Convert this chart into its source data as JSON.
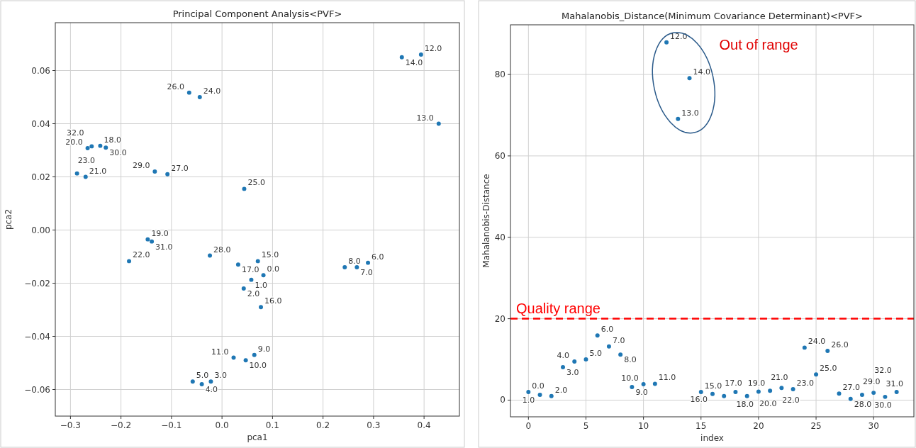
{
  "chart_data": [
    {
      "type": "scatter",
      "title": "Principal Component Analysis<PVF>",
      "xlabel": "pca1",
      "ylabel": "pca2",
      "grid": true,
      "marker": "circle",
      "xlim": [
        -0.33,
        0.47
      ],
      "ylim": [
        -0.07,
        0.078
      ],
      "xticks": [
        {
          "value": -0.3,
          "label": "−0.3"
        },
        {
          "value": -0.2,
          "label": "−0.2"
        },
        {
          "value": -0.1,
          "label": "−0.1"
        },
        {
          "value": 0,
          "label": "0.0"
        },
        0.1,
        0.2,
        0.3,
        0.4
      ],
      "yticks": [
        {
          "value": -0.06,
          "label": "−0.06"
        },
        {
          "value": -0.04,
          "label": "−0.04"
        },
        {
          "value": -0.02,
          "label": "−0.02"
        },
        {
          "value": 0,
          "label": "0.00"
        },
        {
          "value": 0.02,
          "label": "0.02"
        },
        {
          "value": 0.04,
          "label": "0.04"
        },
        {
          "value": 0.06,
          "label": "0.06"
        }
      ],
      "series": [
        {
          "color": "#1f77b4",
          "x": [
            0.082,
            0.058,
            0.043,
            -0.022,
            -0.04,
            -0.058,
            0.289,
            0.267,
            0.243,
            0.064,
            0.047,
            0.023,
            0.394,
            0.429,
            0.356,
            0.071,
            0.077,
            0.032,
            -0.241,
            -0.147,
            -0.266,
            -0.27,
            -0.184,
            -0.287,
            -0.044,
            0.044,
            -0.065,
            -0.108,
            -0.024,
            -0.133,
            -0.23,
            -0.139,
            -0.258
          ],
          "values": [
            -0.017,
            -0.0187,
            -0.022,
            -0.057,
            -0.058,
            -0.057,
            -0.0123,
            -0.014,
            -0.014,
            -0.047,
            -0.049,
            -0.048,
            0.066,
            0.04,
            0.065,
            -0.0117,
            -0.029,
            -0.013,
            0.0317,
            -0.0035,
            0.0308,
            0.02,
            -0.0117,
            0.0213,
            0.05,
            0.0155,
            0.0517,
            0.021,
            -0.0096,
            0.022,
            0.031,
            -0.0043,
            0.0315
          ]
        }
      ],
      "annotations": [
        {
          "text": "0.0",
          "x": 0.082,
          "y": -0.017
        },
        {
          "text": "1.0",
          "x": 0.058,
          "y": -0.0187
        },
        {
          "text": "2.0",
          "x": 0.043,
          "y": -0.022
        },
        {
          "text": "3.0",
          "x": -0.022,
          "y": -0.057
        },
        {
          "text": "4.0",
          "x": -0.04,
          "y": -0.058
        },
        {
          "text": "5.0",
          "x": -0.058,
          "y": -0.057
        },
        {
          "text": "6.0",
          "x": 0.289,
          "y": -0.0123
        },
        {
          "text": "7.0",
          "x": 0.267,
          "y": -0.014
        },
        {
          "text": "8.0",
          "x": 0.243,
          "y": -0.014
        },
        {
          "text": "9.0",
          "x": 0.064,
          "y": -0.047
        },
        {
          "text": "10.0",
          "x": 0.047,
          "y": -0.049
        },
        {
          "text": "11.0",
          "x": 0.023,
          "y": -0.048
        },
        {
          "text": "12.0",
          "x": 0.394,
          "y": 0.066
        },
        {
          "text": "13.0",
          "x": 0.429,
          "y": 0.04
        },
        {
          "text": "14.0",
          "x": 0.356,
          "y": 0.065
        },
        {
          "text": "15.0",
          "x": 0.071,
          "y": -0.0117
        },
        {
          "text": "16.0",
          "x": 0.077,
          "y": -0.029
        },
        {
          "text": "17.0",
          "x": 0.032,
          "y": -0.013
        },
        {
          "text": "18.0",
          "x": -0.241,
          "y": 0.0317
        },
        {
          "text": "19.0",
          "x": -0.147,
          "y": -0.0035
        },
        {
          "text": "20.0",
          "x": -0.266,
          "y": 0.0308
        },
        {
          "text": "21.0",
          "x": -0.27,
          "y": 0.02
        },
        {
          "text": "22.0",
          "x": -0.184,
          "y": -0.0117
        },
        {
          "text": "23.0",
          "x": -0.287,
          "y": 0.0213
        },
        {
          "text": "24.0",
          "x": -0.044,
          "y": 0.05
        },
        {
          "text": "25.0",
          "x": 0.044,
          "y": 0.0155
        },
        {
          "text": "26.0",
          "x": -0.065,
          "y": 0.0517
        },
        {
          "text": "27.0",
          "x": -0.108,
          "y": 0.021
        },
        {
          "text": "28.0",
          "x": -0.024,
          "y": -0.0096
        },
        {
          "text": "29.0",
          "x": -0.133,
          "y": 0.022
        },
        {
          "text": "30.0",
          "x": -0.23,
          "y": 0.031
        },
        {
          "text": "31.0",
          "x": -0.139,
          "y": -0.0043
        },
        {
          "text": "32.0",
          "x": -0.258,
          "y": 0.0315
        }
      ]
    },
    {
      "type": "scatter",
      "title": "Mahalanobis_Distance(Minimum Covariance Determinant)<PVF>",
      "xlabel": "index",
      "ylabel": "Mahalanobis-Distance",
      "grid": true,
      "marker": "circle",
      "xlim": [
        -1.56,
        33.5
      ],
      "ylim": [
        -4.1,
        92.2
      ],
      "xticks": [
        0,
        5,
        10,
        15,
        20,
        25,
        30
      ],
      "yticks": [
        0,
        20,
        40,
        60,
        80
      ],
      "series": [
        {
          "color": "#1f77b4",
          "x": [
            0,
            1,
            2,
            3,
            4,
            5,
            6,
            7,
            8,
            9,
            10,
            11,
            12,
            13,
            14,
            15,
            16,
            17,
            18,
            19,
            20,
            21,
            22,
            23,
            24,
            25,
            26,
            27,
            28,
            29,
            30,
            31,
            32
          ],
          "values": [
            2.0,
            1.3,
            1.0,
            8.1,
            9.5,
            10.0,
            15.9,
            13.2,
            11.2,
            3.2,
            3.9,
            4.0,
            87.9,
            69.1,
            79.1,
            2.0,
            1.5,
            1.0,
            2.0,
            1.0,
            2.1,
            2.3,
            3.0,
            2.7,
            12.9,
            6.3,
            12.1,
            1.6,
            0.3,
            1.3,
            1.8,
            0.8,
            2.0
          ]
        }
      ],
      "ref_lines": [
        {
          "axis": "y",
          "value": 20,
          "label": "Quality range",
          "color": "#ff0000",
          "line_style": "dashed"
        }
      ],
      "annotations": [
        "Out of range",
        {
          "text": "0.0",
          "x": 0,
          "y": 2.0
        },
        {
          "text": "1.0",
          "x": 1,
          "y": 1.3
        },
        {
          "text": "2.0",
          "x": 2,
          "y": 1.0
        },
        {
          "text": "3.0",
          "x": 3,
          "y": 8.1
        },
        {
          "text": "4.0",
          "x": 4,
          "y": 9.5
        },
        {
          "text": "5.0",
          "x": 5,
          "y": 10.0
        },
        {
          "text": "6.0",
          "x": 6,
          "y": 15.9
        },
        {
          "text": "7.0",
          "x": 7,
          "y": 13.2
        },
        {
          "text": "8.0",
          "x": 8,
          "y": 11.2
        },
        {
          "text": "9.0",
          "x": 9,
          "y": 3.2
        },
        {
          "text": "10.0",
          "x": 10,
          "y": 3.9
        },
        {
          "text": "11.0",
          "x": 11,
          "y": 4.0
        },
        {
          "text": "12.0",
          "x": 12,
          "y": 87.9
        },
        {
          "text": "13.0",
          "x": 13,
          "y": 69.1
        },
        {
          "text": "14.0",
          "x": 14,
          "y": 79.1
        },
        {
          "text": "15.0",
          "x": 15,
          "y": 2.0
        },
        {
          "text": "16.0",
          "x": 16,
          "y": 1.5
        },
        {
          "text": "17.0",
          "x": 17,
          "y": 1.0
        },
        {
          "text": "18.0",
          "x": 18,
          "y": 2.0
        },
        {
          "text": "19.0",
          "x": 19,
          "y": 1.0
        },
        {
          "text": "20.0",
          "x": 20,
          "y": 2.1
        },
        {
          "text": "21.0",
          "x": 21,
          "y": 2.3
        },
        {
          "text": "22.0",
          "x": 22,
          "y": 3.0
        },
        {
          "text": "23.0",
          "x": 23,
          "y": 2.7
        },
        {
          "text": "24.0",
          "x": 24,
          "y": 12.9
        },
        {
          "text": "25.0",
          "x": 25,
          "y": 6.3
        },
        {
          "text": "26.0",
          "x": 26,
          "y": 12.1
        },
        {
          "text": "27.0",
          "x": 27,
          "y": 1.6
        },
        {
          "text": "28.0",
          "x": 28,
          "y": 0.3
        },
        {
          "text": "29.0",
          "x": 29,
          "y": 1.3
        },
        {
          "text": "30.0",
          "x": 30,
          "y": 1.8
        },
        {
          "text": "31.0",
          "x": 31,
          "y": 0.8
        },
        {
          "text": "32.0",
          "x": 32,
          "y": 2.0
        }
      ]
    }
  ]
}
